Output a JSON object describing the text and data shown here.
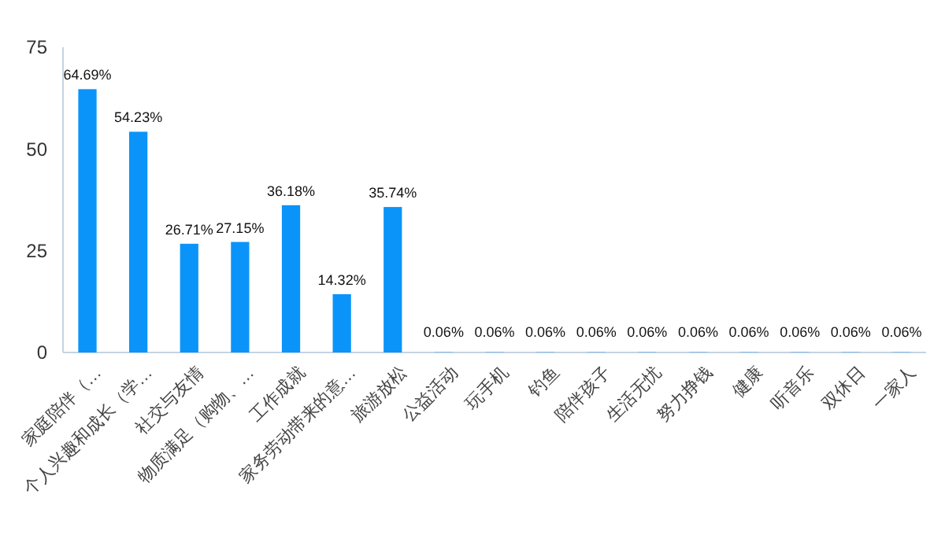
{
  "chart_data": {
    "type": "bar",
    "categories": [
      "家庭陪伴（…",
      "个人兴趣和成长（学…",
      "社交与友情",
      "物质满足（购物、…",
      "工作成就",
      "家务劳动带来的意…",
      "旅游放松",
      "公益活动",
      "玩手机",
      "钓鱼",
      "陪伴孩子",
      "生活无忧",
      "努力挣钱",
      "健康",
      "听音乐",
      "双休日",
      "一家人"
    ],
    "values": [
      64.69,
      54.23,
      26.71,
      27.15,
      36.18,
      14.32,
      35.74,
      0.06,
      0.06,
      0.06,
      0.06,
      0.06,
      0.06,
      0.06,
      0.06,
      0.06,
      0.06
    ],
    "value_labels": [
      "64.69%",
      "54.23%",
      "26.71%",
      "27.15%",
      "36.18%",
      "14.32%",
      "35.74%",
      "0.06%",
      "0.06%",
      "0.06%",
      "0.06%",
      "0.06%",
      "0.06%",
      "0.06%",
      "0.06%",
      "0.06%",
      "0.06%"
    ],
    "color": "#0a94fa",
    "ylim": [
      0,
      75
    ],
    "yticks": [
      0,
      25,
      50,
      75
    ],
    "grid": false
  }
}
